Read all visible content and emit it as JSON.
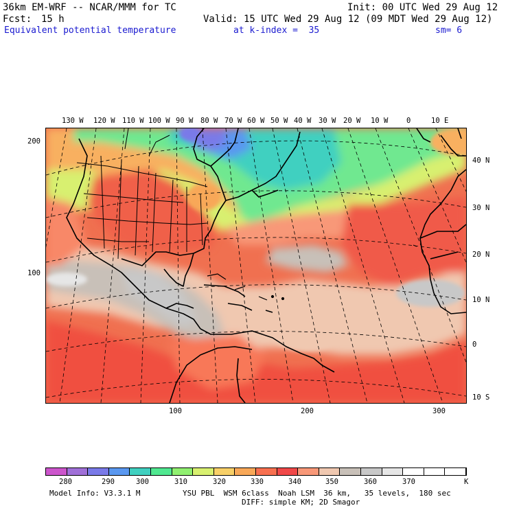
{
  "header": {
    "model": "36km EM-WRF -- NCAR/MMM for TC",
    "init": "Init: 00 UTC Wed 29 Aug 12",
    "fcst_label": "Fcst:",
    "fcst_value": "15 h",
    "valid": "Valid: 15 UTC Wed 29 Aug 12 (09 MDT Wed 29 Aug 12)",
    "field": "Equivalent potential temperature",
    "level": "at k-index =  35",
    "smoothing": "sm= 6"
  },
  "map": {
    "top_lon_labels": [
      "130 W",
      "120 W",
      "110 W",
      "100 W",
      "90 W",
      "80 W",
      "70 W",
      "60 W",
      "50 W",
      "40 W",
      "30 W",
      "20 W",
      "10 W",
      "0",
      "10 E"
    ],
    "right_lat_labels": [
      "40 N",
      "30 N",
      "20 N",
      "10 N",
      "0",
      "10 S"
    ],
    "left_grid_labels": [
      "200",
      "100"
    ],
    "bottom_grid_labels": [
      "100",
      "200",
      "300"
    ]
  },
  "colorbar": {
    "labels": [
      "280",
      "290",
      "300",
      "310",
      "320",
      "330",
      "340",
      "350",
      "360",
      "370"
    ],
    "unit": "K",
    "colors": [
      "#cc55cc",
      "#a070d8",
      "#7a7ae8",
      "#5a98f0",
      "#40d0c0",
      "#50e890",
      "#90f070",
      "#d8f070",
      "#f8d068",
      "#f8a858",
      "#f87050",
      "#f04848",
      "#f89878",
      "#f0c8b0",
      "#c8c0b8",
      "#c8c8c8",
      "#e6e6e6",
      "#ffffff",
      "#ffffff",
      "#ffffff"
    ]
  },
  "footer": {
    "model_info": "Model Info: V3.3.1 M",
    "physics": "YSU PBL  WSM 6class  Noah LSM  36 km,   35 levels,  180 sec",
    "diffusion": "DIFF: simple KM; 2D Smagor"
  }
}
